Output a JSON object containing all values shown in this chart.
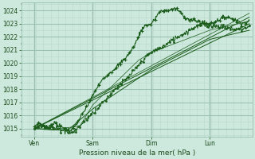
{
  "xlabel": "Pression niveau de la mer( hPa )",
  "bg_color": "#cde8dc",
  "grid_minor_color": "#b8d8cc",
  "grid_major_color": "#9abfb0",
  "line_color": "#1a5c1a",
  "ylim": [
    1014.4,
    1024.6
  ],
  "yticks": [
    1015,
    1016,
    1017,
    1018,
    1019,
    1020,
    1021,
    1022,
    1023,
    1024
  ],
  "xlim": [
    0.0,
    3.95
  ],
  "xtick_positions": [
    0.22,
    1.22,
    2.22,
    3.22
  ],
  "xtick_labels": [
    "Ven",
    "Sam",
    "Dim",
    "Lun"
  ]
}
